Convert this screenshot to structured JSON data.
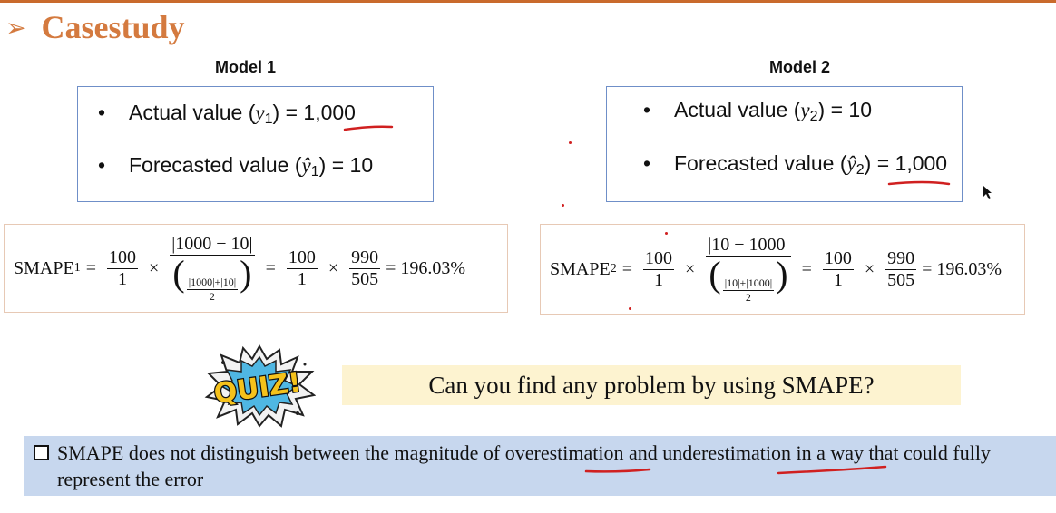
{
  "title": "Casestudy",
  "model1": {
    "heading": "Model 1",
    "actual_label": "Actual value (",
    "actual_var": "y",
    "actual_sub": "1",
    "actual_value": ") = 1,000",
    "forecast_label": "Forecasted value (",
    "forecast_var": "ŷ",
    "forecast_sub": "1",
    "forecast_value": ") = 10",
    "formula": {
      "lhs": "SMAPE",
      "lhs_sub": "1",
      "f1_num": "100",
      "f1_den": "1",
      "f2_num": "|1000 − 10|",
      "f2_den_num": "|1000|+|10|",
      "f2_den_den": "2",
      "f3_num": "100",
      "f3_den": "1",
      "f4_num": "990",
      "f4_den": "505",
      "result": "= 196.03%"
    }
  },
  "model2": {
    "heading": "Model 2",
    "actual_label": "Actual value (",
    "actual_var": "y",
    "actual_sub": "2",
    "actual_value": ") = 10",
    "forecast_label": "Forecasted value (",
    "forecast_var": "ŷ",
    "forecast_sub": "2",
    "forecast_value": ") = 1,000",
    "formula": {
      "lhs": "SMAPE",
      "lhs_sub": "2",
      "f1_num": "100",
      "f1_den": "1",
      "f2_num": "|10 − 1000|",
      "f2_den_num": "|10|+|1000|",
      "f2_den_den": "2",
      "f3_num": "100",
      "f3_den": "1",
      "f4_num": "990",
      "f4_den": "505",
      "result": "= 196.03%"
    }
  },
  "quiz_logo": "QUIZ!",
  "question": "Can you find any problem by using SMAPE?",
  "conclusion": "SMAPE does not distinguish between the magnitude of overestimation and underestimation in a way that could fully represent the error",
  "colors": {
    "accent": "#d47a3f",
    "annotation": "#d02020",
    "box_border": "#6f8fc8",
    "highlight": "#fdf3d0",
    "bottom_bg": "#c7d7ee"
  }
}
